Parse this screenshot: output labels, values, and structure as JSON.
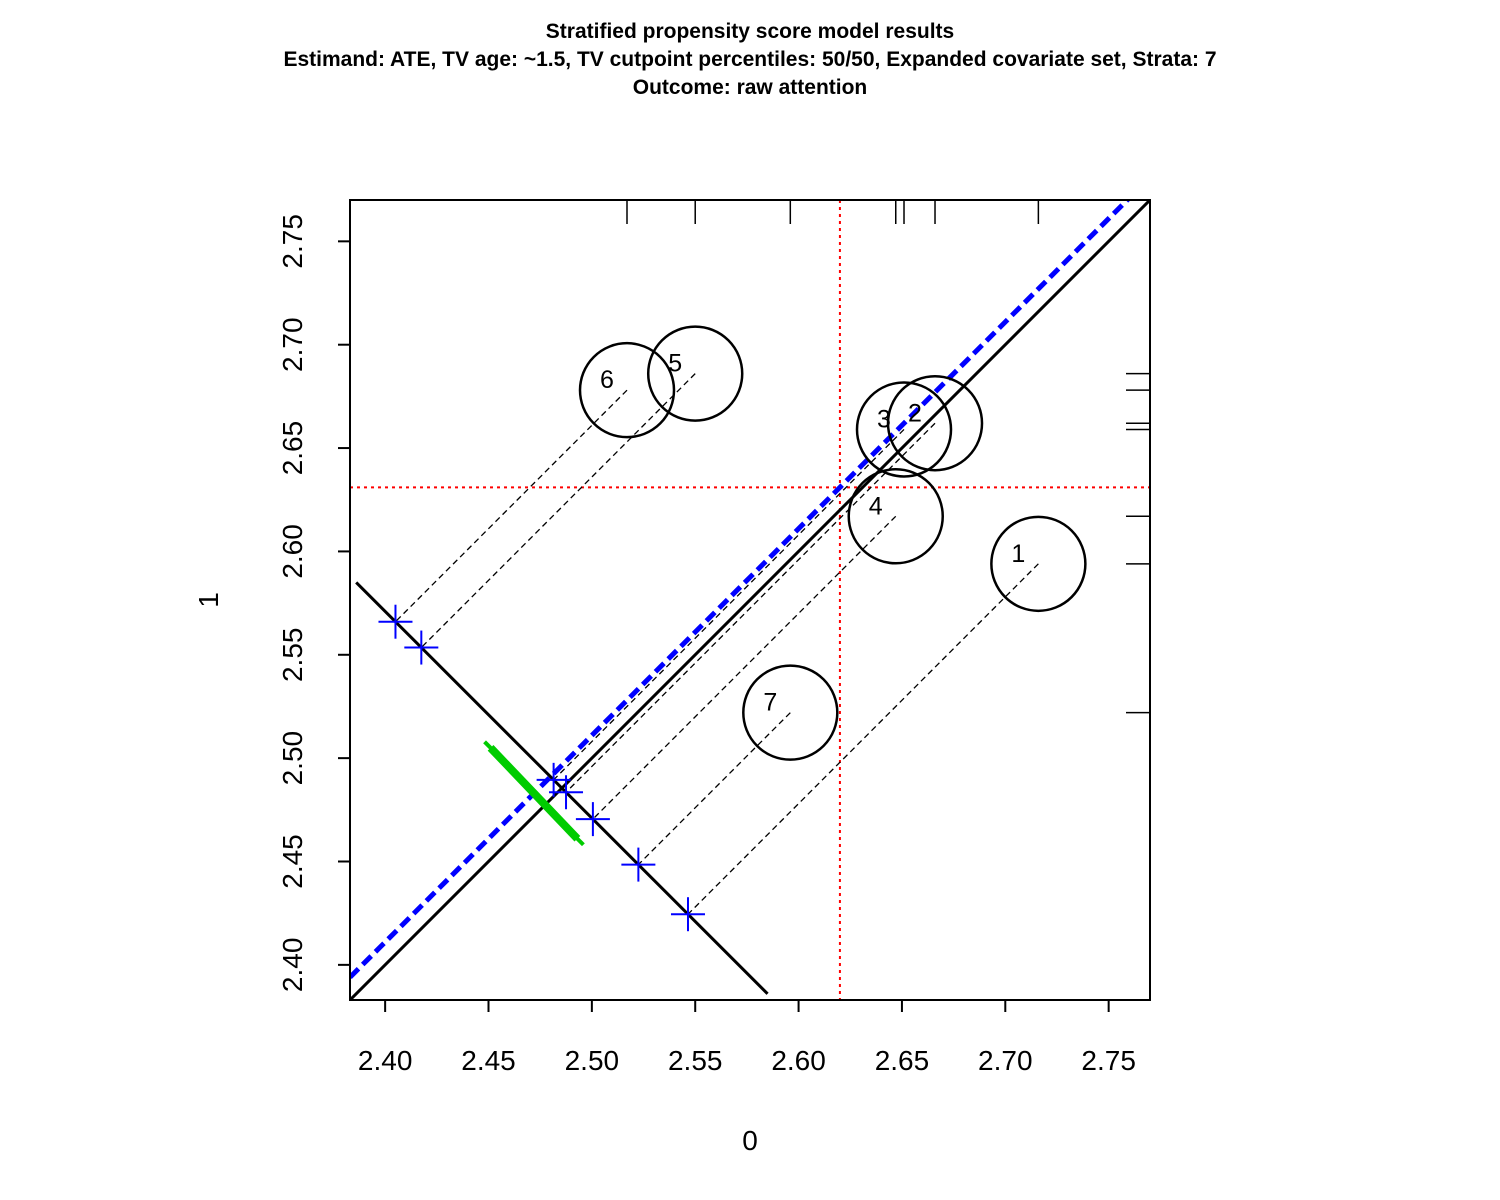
{
  "header": {
    "title": "Stratified propensity score model results",
    "subtitle": "Estimand: ATE, TV age: ~1.5, TV cutpoint percentiles: 50/50, Expanded covariate set, Strata: 7",
    "subtitle2": "Outcome: raw attention"
  },
  "chart_data": {
    "type": "scatter",
    "title": "Stratified propensity score model results",
    "xlabel": "0",
    "ylabel": "1",
    "xlim": [
      2.383,
      2.77
    ],
    "ylim": [
      2.383,
      2.77
    ],
    "xticks": [
      "2.40",
      "2.45",
      "2.50",
      "2.55",
      "2.60",
      "2.65",
      "2.70",
      "2.75"
    ],
    "yticks": [
      "2.40",
      "2.45",
      "2.50",
      "2.55",
      "2.60",
      "2.65",
      "2.70",
      "2.75"
    ],
    "strata": [
      {
        "label": "1",
        "x": 2.716,
        "y": 2.594
      },
      {
        "label": "2",
        "x": 2.666,
        "y": 2.662
      },
      {
        "label": "3",
        "x": 2.651,
        "y": 2.659
      },
      {
        "label": "4",
        "x": 2.647,
        "y": 2.617
      },
      {
        "label": "5",
        "x": 2.55,
        "y": 2.686
      },
      {
        "label": "6",
        "x": 2.517,
        "y": 2.678
      },
      {
        "label": "7",
        "x": 2.596,
        "y": 2.522
      }
    ],
    "weighted_mean": {
      "x": 2.62,
      "y": 2.631
    },
    "ci_line": {
      "from": [
        2.451,
        2.505
      ],
      "to": [
        2.493,
        2.461
      ]
    },
    "colors": {
      "strata": "#000000",
      "projections": "#0000ff",
      "blue_line": "#0000ff",
      "ci": "#00cc00",
      "mean_lines": "#ff0000"
    }
  }
}
